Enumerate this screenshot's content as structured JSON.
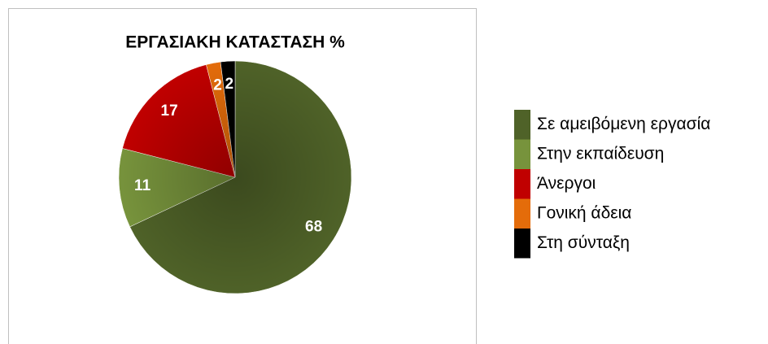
{
  "chart_data": {
    "type": "pie",
    "title": "ΕΡΓΑΣΙΑΚΗ ΚΑΤΑΣΤΑΣΗ %",
    "categories": [
      "Σε αμειβόμενη εργασία",
      "Στην εκπαίδευση",
      "Άνεργοι",
      "Γονική άδεια",
      "Στη σύνταξη"
    ],
    "values": [
      68,
      11,
      17,
      2,
      2
    ],
    "colors": [
      "#4f6228",
      "#77933c",
      "#c00000",
      "#e46c0a",
      "#000000"
    ],
    "legend": "right"
  }
}
